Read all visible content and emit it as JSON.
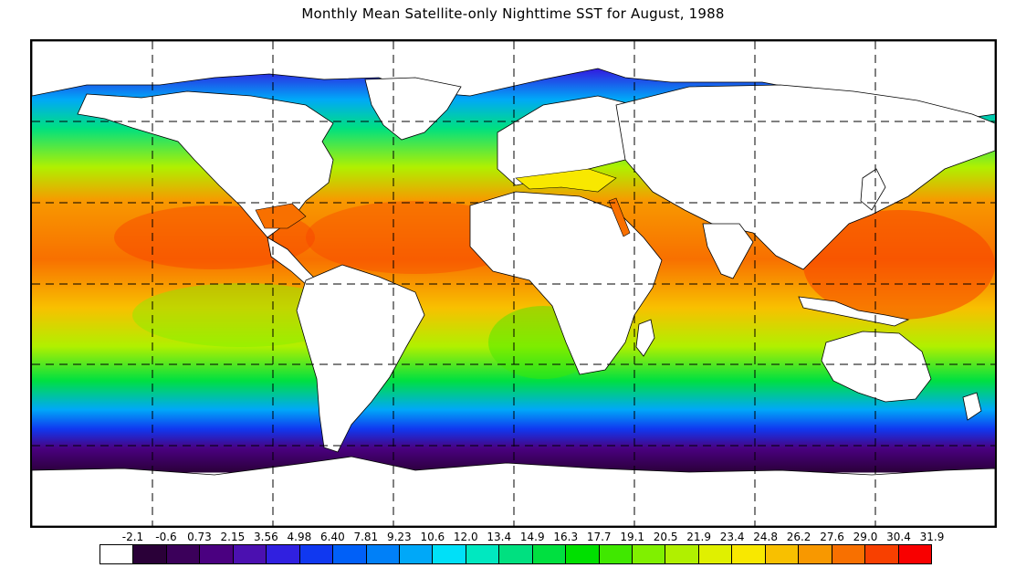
{
  "title": "Monthly Mean Satellite-only Nighttime SST for August, 1988",
  "map": {
    "projection": "equirectangular",
    "grid_lines": "dashed",
    "land_color": "#ffffff",
    "coastline_color": "#000000"
  },
  "legend": {
    "labels": [
      "-2.1",
      "-0.6",
      "0.73",
      "2.15",
      "3.56",
      "4.98",
      "6.40",
      "7.81",
      "9.23",
      "10.6",
      "12.0",
      "13.4",
      "14.9",
      "16.3",
      "17.7",
      "19.1",
      "20.5",
      "21.9",
      "23.4",
      "24.8",
      "26.2",
      "27.6",
      "29.0",
      "30.4",
      "31.9"
    ],
    "colors": [
      "#ffffff",
      "#2a0038",
      "#3b005a",
      "#4a0080",
      "#4b10b0",
      "#3020e0",
      "#1038f0",
      "#0060f8",
      "#0080f8",
      "#00a8f8",
      "#00e0f8",
      "#00e8c0",
      "#00e080",
      "#00e040",
      "#00e000",
      "#40e800",
      "#80f000",
      "#b0f000",
      "#e0f000",
      "#f8e800",
      "#f8c000",
      "#f89800",
      "#f87000",
      "#f84000",
      "#f80000"
    ]
  }
}
